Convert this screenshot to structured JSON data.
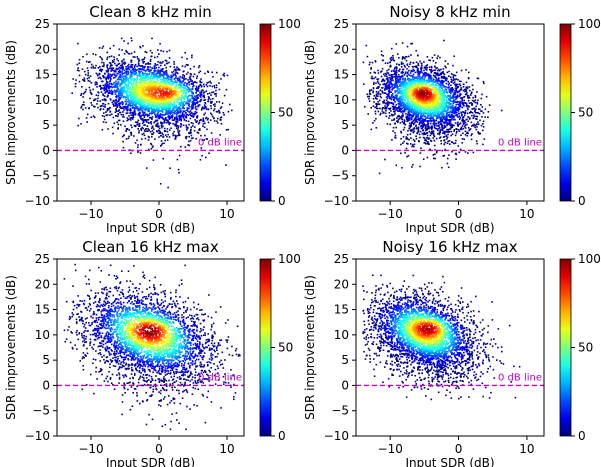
{
  "chart_data": [
    {
      "type": "scatter",
      "title": "Clean 8 kHz min",
      "xlabel": "Input SDR (dB)",
      "ylabel": "SDR improvements (dB)",
      "xlim": [
        -15,
        12.5
      ],
      "ylim": [
        -10,
        25
      ],
      "xticks": [
        "−10",
        "0",
        "10"
      ],
      "yticks": [
        "25",
        "20",
        "15",
        "10",
        "5",
        "0",
        "−5",
        "−10"
      ],
      "colorbar": {
        "min": 0,
        "max": 100,
        "ticks": [
          "100",
          "50",
          "0"
        ],
        "colormap": "jet"
      },
      "reference_line": {
        "y": 0,
        "label": "0 dB line",
        "color": "#c800c8",
        "style": "dashed"
      },
      "point_cloud": {
        "x_center": -1,
        "y_center": 11.5,
        "x_spread": 4.5,
        "y_spread": 3.3,
        "slope": -0.22,
        "x_range": [
          -13,
          11
        ],
        "y_range": [
          -8,
          24
        ],
        "hotspot": [
          2,
          11.5
        ],
        "count": 3200
      }
    },
    {
      "type": "scatter",
      "title": "Noisy 8 kHz min",
      "xlabel": "Input SDR (dB)",
      "ylabel": "SDR improvements (dB)",
      "xlim": [
        -15,
        12.5
      ],
      "ylim": [
        -10,
        25
      ],
      "xticks": [
        "−10",
        "0",
        "10"
      ],
      "yticks": [
        "25",
        "20",
        "15",
        "10",
        "5",
        "0",
        "−5",
        "−10"
      ],
      "colorbar": {
        "min": 0,
        "max": 100,
        "ticks": [
          "100",
          "50",
          "0"
        ],
        "colormap": "jet"
      },
      "reference_line": {
        "y": 0,
        "label": "0 dB line",
        "color": "#c800c8",
        "style": "dashed"
      },
      "point_cloud": {
        "x_center": -5,
        "y_center": 10.5,
        "x_spread": 3.5,
        "y_spread": 3.2,
        "slope": -0.3,
        "x_range": [
          -14,
          8
        ],
        "y_range": [
          -5,
          22
        ],
        "hotspot": [
          -5,
          11.5
        ],
        "count": 3200
      }
    },
    {
      "type": "scatter",
      "title": "Clean 16 kHz max",
      "xlabel": "Input SDR (dB)",
      "ylabel": "SDR improvements (dB)",
      "xlim": [
        -15,
        12.5
      ],
      "ylim": [
        -10,
        25
      ],
      "xticks": [
        "−10",
        "0",
        "10"
      ],
      "yticks": [
        "25",
        "20",
        "15",
        "10",
        "5",
        "0",
        "−5",
        "−10"
      ],
      "colorbar": {
        "min": 0,
        "max": 100,
        "ticks": [
          "100",
          "50",
          "0"
        ],
        "colormap": "jet"
      },
      "reference_line": {
        "y": 0,
        "label": "0 dB line",
        "color": "#c800c8",
        "style": "dashed"
      },
      "point_cloud": {
        "x_center": -1.5,
        "y_center": 10,
        "x_spread": 5,
        "y_spread": 4.2,
        "slope": -0.35,
        "x_range": [
          -14,
          12
        ],
        "y_range": [
          -9,
          24
        ],
        "hotspot": [
          -1,
          11
        ],
        "count": 3400
      }
    },
    {
      "type": "scatter",
      "title": "Noisy 16 kHz max",
      "xlabel": "Input SDR (dB)",
      "ylabel": "SDR improvements (dB)",
      "xlim": [
        -15,
        12.5
      ],
      "ylim": [
        -10,
        25
      ],
      "xticks": [
        "−10",
        "0",
        "10"
      ],
      "yticks": [
        "25",
        "20",
        "15",
        "10",
        "5",
        "0",
        "−5",
        "−10"
      ],
      "colorbar": {
        "min": 0,
        "max": 100,
        "ticks": [
          "100",
          "50",
          "0"
        ],
        "colormap": "jet"
      },
      "reference_line": {
        "y": 0,
        "label": "0 dB line",
        "color": "#c800c8",
        "style": "dashed"
      },
      "point_cloud": {
        "x_center": -5,
        "y_center": 10.5,
        "x_spread": 4,
        "y_spread": 3.6,
        "slope": -0.35,
        "x_range": [
          -14,
          9
        ],
        "y_range": [
          -3,
          22
        ],
        "hotspot": [
          -4,
          11.5
        ],
        "count": 3400
      }
    }
  ]
}
